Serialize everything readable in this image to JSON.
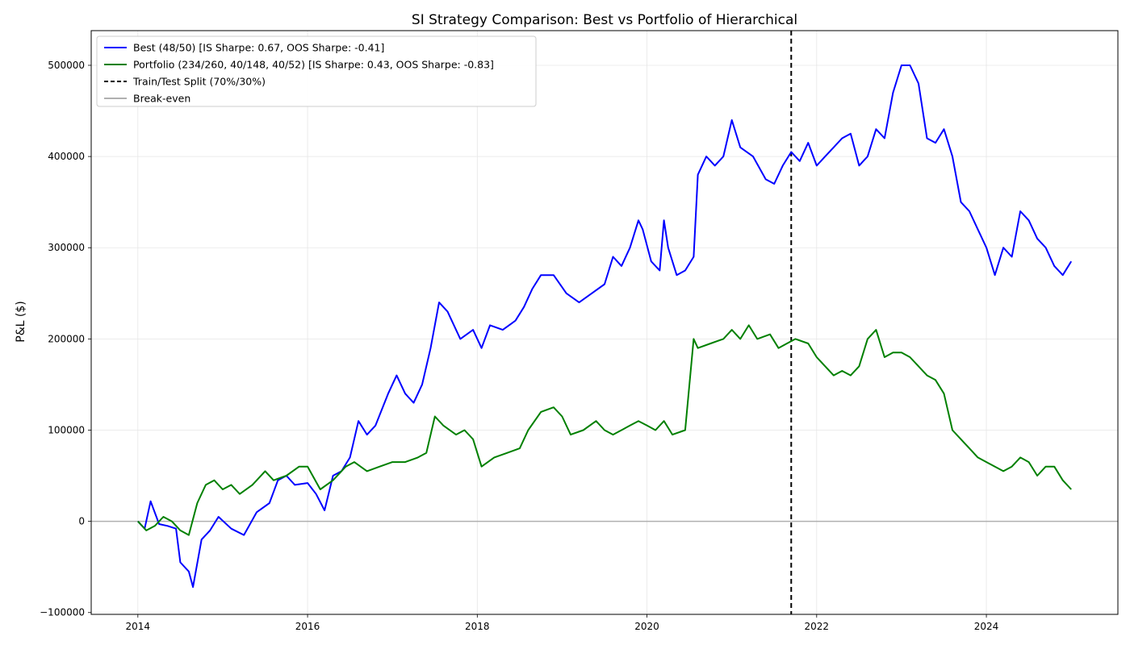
{
  "chart_data": {
    "type": "line",
    "title": "SI Strategy Comparison: Best vs Portfolio of Hierarchical",
    "xlabel": "",
    "ylabel": "P&L ($)",
    "xlim": [
      2013.45,
      2025.55
    ],
    "ylim": [
      -102000,
      538000
    ],
    "x_ticks": [
      2014,
      2016,
      2018,
      2020,
      2022,
      2024
    ],
    "x_tick_labels": [
      "2014",
      "2016",
      "2018",
      "2020",
      "2022",
      "2024"
    ],
    "y_ticks": [
      -100000,
      0,
      100000,
      200000,
      300000,
      400000,
      500000
    ],
    "y_tick_labels": [
      "−100000",
      "0",
      "100000",
      "200000",
      "300000",
      "400000",
      "500000"
    ],
    "grid": true,
    "legend_position": "top-left",
    "colors": {
      "best": "#0000ff",
      "portfolio": "#008000",
      "split": "#000000",
      "breakeven": "#b0b0b0"
    },
    "series": [
      {
        "name": "Best (48/50) [IS Sharpe: 0.67, OOS Sharpe: -0.41]",
        "key": "best",
        "x": [
          2014.0,
          2014.08,
          2014.15,
          2014.25,
          2014.35,
          2014.45,
          2014.5,
          2014.6,
          2014.65,
          2014.75,
          2014.85,
          2014.95,
          2015.1,
          2015.25,
          2015.4,
          2015.55,
          2015.65,
          2015.75,
          2015.85,
          2016.0,
          2016.1,
          2016.2,
          2016.3,
          2016.4,
          2016.5,
          2016.6,
          2016.7,
          2016.8,
          2016.95,
          2017.05,
          2017.15,
          2017.25,
          2017.35,
          2017.45,
          2017.55,
          2017.65,
          2017.8,
          2017.95,
          2018.05,
          2018.15,
          2018.3,
          2018.45,
          2018.55,
          2018.65,
          2018.75,
          2018.9,
          2019.05,
          2019.2,
          2019.35,
          2019.5,
          2019.6,
          2019.7,
          2019.8,
          2019.9,
          2019.95,
          2020.05,
          2020.15,
          2020.2,
          2020.25,
          2020.35,
          2020.45,
          2020.55,
          2020.6,
          2020.7,
          2020.8,
          2020.9,
          2021.0,
          2021.1,
          2021.25,
          2021.4,
          2021.5,
          2021.6,
          2021.7,
          2021.8,
          2021.9,
          2022.0,
          2022.1,
          2022.2,
          2022.3,
          2022.4,
          2022.5,
          2022.6,
          2022.7,
          2022.8,
          2022.9,
          2023.0,
          2023.1,
          2023.2,
          2023.3,
          2023.4,
          2023.5,
          2023.6,
          2023.7,
          2023.8,
          2023.9,
          2024.0,
          2024.1,
          2024.2,
          2024.3,
          2024.4,
          2024.5,
          2024.6,
          2024.7,
          2024.8,
          2024.9,
          2025.0
        ],
        "y": [
          0,
          -8000,
          22000,
          -3000,
          -5000,
          -8000,
          -45000,
          -55000,
          -72000,
          -20000,
          -10000,
          5000,
          -8000,
          -15000,
          10000,
          20000,
          45000,
          50000,
          40000,
          42000,
          30000,
          12000,
          50000,
          55000,
          70000,
          110000,
          95000,
          105000,
          140000,
          160000,
          140000,
          130000,
          150000,
          190000,
          240000,
          230000,
          200000,
          210000,
          190000,
          215000,
          210000,
          220000,
          235000,
          255000,
          270000,
          270000,
          250000,
          240000,
          250000,
          260000,
          290000,
          280000,
          300000,
          330000,
          320000,
          285000,
          275000,
          330000,
          300000,
          270000,
          275000,
          290000,
          380000,
          400000,
          390000,
          400000,
          440000,
          410000,
          400000,
          375000,
          370000,
          390000,
          405000,
          395000,
          415000,
          390000,
          400000,
          410000,
          420000,
          425000,
          390000,
          400000,
          430000,
          420000,
          470000,
          500000,
          500000,
          480000,
          420000,
          415000,
          430000,
          400000,
          350000,
          340000,
          320000,
          300000,
          270000,
          300000,
          290000,
          340000,
          330000,
          310000,
          300000,
          280000,
          270000,
          285000
        ]
      },
      {
        "name": "Portfolio (234/260, 40/148, 40/52) [IS Sharpe: 0.43, OOS Sharpe: -0.83]",
        "key": "portfolio",
        "x": [
          2014.0,
          2014.1,
          2014.2,
          2014.3,
          2014.4,
          2014.5,
          2014.6,
          2014.7,
          2014.8,
          2014.9,
          2015.0,
          2015.1,
          2015.2,
          2015.35,
          2015.5,
          2015.6,
          2015.75,
          2015.9,
          2016.0,
          2016.15,
          2016.3,
          2016.45,
          2016.55,
          2016.7,
          2016.85,
          2017.0,
          2017.15,
          2017.3,
          2017.4,
          2017.5,
          2017.6,
          2017.75,
          2017.85,
          2017.95,
          2018.05,
          2018.2,
          2018.35,
          2018.5,
          2018.6,
          2018.75,
          2018.9,
          2019.0,
          2019.1,
          2019.25,
          2019.4,
          2019.5,
          2019.6,
          2019.7,
          2019.8,
          2019.9,
          2020.0,
          2020.1,
          2020.2,
          2020.3,
          2020.45,
          2020.55,
          2020.6,
          2020.75,
          2020.9,
          2021.0,
          2021.1,
          2021.2,
          2021.3,
          2021.45,
          2021.55,
          2021.65,
          2021.75,
          2021.9,
          2022.0,
          2022.1,
          2022.2,
          2022.3,
          2022.4,
          2022.5,
          2022.6,
          2022.7,
          2022.8,
          2022.9,
          2023.0,
          2023.1,
          2023.2,
          2023.3,
          2023.4,
          2023.5,
          2023.6,
          2023.7,
          2023.8,
          2023.9,
          2024.0,
          2024.1,
          2024.2,
          2024.3,
          2024.4,
          2024.5,
          2024.6,
          2024.7,
          2024.8,
          2024.9,
          2025.0
        ],
        "y": [
          0,
          -10000,
          -5000,
          5000,
          0,
          -10000,
          -15000,
          20000,
          40000,
          45000,
          35000,
          40000,
          30000,
          40000,
          55000,
          45000,
          50000,
          60000,
          60000,
          35000,
          45000,
          60000,
          65000,
          55000,
          60000,
          65000,
          65000,
          70000,
          75000,
          115000,
          105000,
          95000,
          100000,
          90000,
          60000,
          70000,
          75000,
          80000,
          100000,
          120000,
          125000,
          115000,
          95000,
          100000,
          110000,
          100000,
          95000,
          100000,
          105000,
          110000,
          105000,
          100000,
          110000,
          95000,
          100000,
          200000,
          190000,
          195000,
          200000,
          210000,
          200000,
          215000,
          200000,
          205000,
          190000,
          195000,
          200000,
          195000,
          180000,
          170000,
          160000,
          165000,
          160000,
          170000,
          200000,
          210000,
          180000,
          185000,
          185000,
          180000,
          170000,
          160000,
          155000,
          140000,
          100000,
          90000,
          80000,
          70000,
          65000,
          60000,
          55000,
          60000,
          70000,
          65000,
          50000,
          60000,
          60000,
          45000,
          35000
        ]
      }
    ],
    "annotations": [
      {
        "type": "vline",
        "name": "Train/Test Split (70%/30%)",
        "x": 2021.7,
        "style": "dashed"
      },
      {
        "type": "hline",
        "name": "Break-even",
        "y": 0
      }
    ],
    "legend": [
      "Best (48/50) [IS Sharpe: 0.67, OOS Sharpe: -0.41]",
      "Portfolio (234/260, 40/148, 40/52) [IS Sharpe: 0.43, OOS Sharpe: -0.83]",
      "Train/Test Split (70%/30%)",
      "Break-even"
    ]
  }
}
